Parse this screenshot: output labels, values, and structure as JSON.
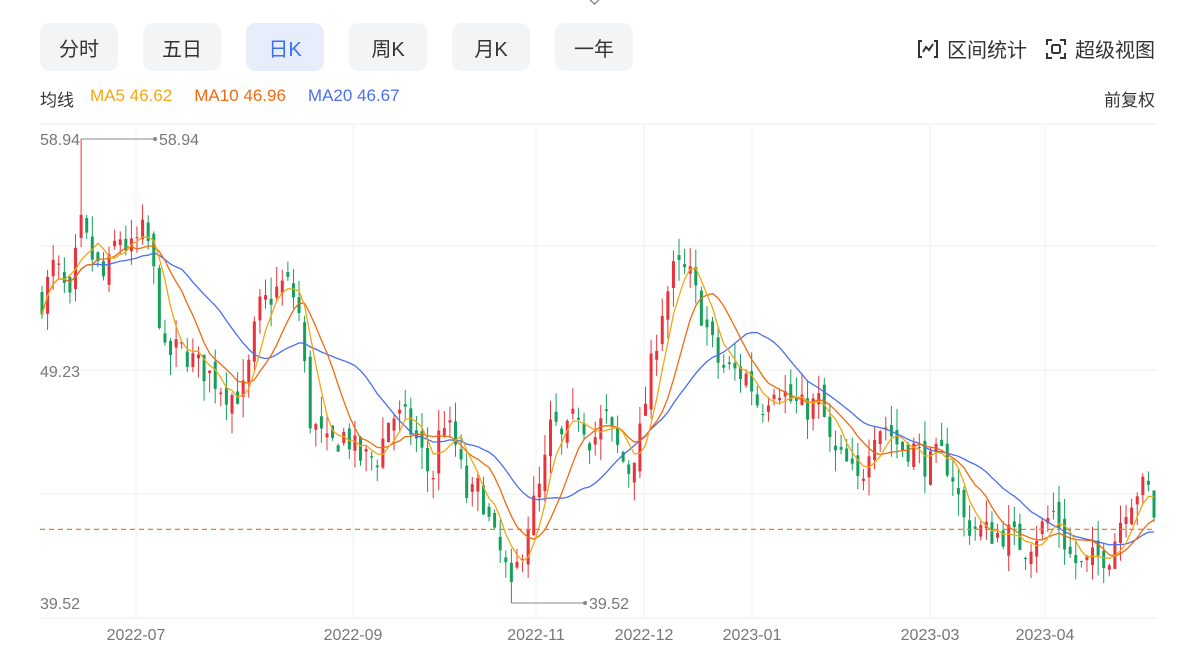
{
  "toolbar": {
    "tabs": [
      {
        "label": "分时",
        "active": false
      },
      {
        "label": "五日",
        "active": false
      },
      {
        "label": "日K",
        "active": true
      },
      {
        "label": "周K",
        "active": false
      },
      {
        "label": "月K",
        "active": false
      },
      {
        "label": "一年",
        "active": false
      }
    ],
    "interval_stats_label": "区间统计",
    "super_view_label": "超级视图"
  },
  "legend": {
    "prefix": "均线",
    "ma5": "MA5 46.62",
    "ma10": "MA10 46.96",
    "ma20": "MA20 46.67",
    "adjust_label": "前复权"
  },
  "colors": {
    "up": "#e8333a",
    "down": "#14a05a",
    "ma5": "#f2a713",
    "ma10": "#f06a10",
    "ma20": "#4a6ef0",
    "ref_line": "#f07a26",
    "active_tab": "#3b6ff5"
  },
  "chart_data": {
    "type": "candlestick",
    "y_ticks": [
      "58.94",
      "49.23",
      "39.52"
    ],
    "ylim": [
      39.52,
      58.94
    ],
    "x_ticks": [
      "2022-07",
      "2022-09",
      "2022-11",
      "2022-12",
      "2023-01",
      "2023-03",
      "2023-04"
    ],
    "high_marker": "58.94",
    "low_marker": "39.52",
    "reference_price": 42.6,
    "latest_close": 43.1,
    "ma5_last": 46.62,
    "ma10_last": 46.96,
    "ma20_last": 46.67,
    "grid": true
  }
}
